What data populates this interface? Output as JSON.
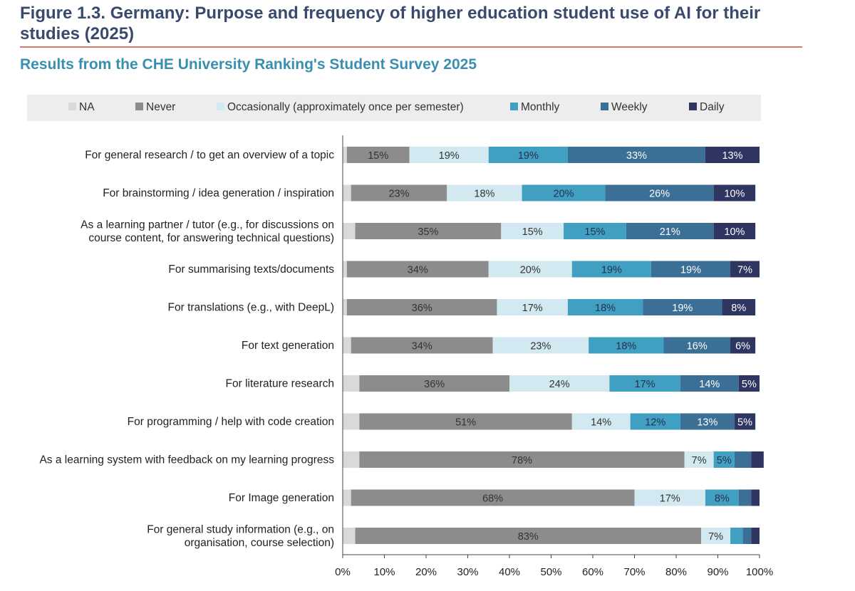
{
  "header": {
    "title": "Figure 1.3. Germany: Purpose and frequency of higher education student use of AI for their studies (2025)",
    "subtitle": "Results from the CHE University Ranking's Student Survey 2025"
  },
  "colors": {
    "NA": "#d9d9d9",
    "Never": "#8c8c8c",
    "Occasionally": "#d3e9f1",
    "Monthly": "#41a0c1",
    "Weekly": "#3b6f96",
    "Daily": "#2d3560",
    "title": "#394a6d",
    "subtitle": "#3a8fb0",
    "rule": "#d9796e"
  },
  "legend": [
    {
      "key": "NA",
      "label": "NA"
    },
    {
      "key": "Never",
      "label": "Never"
    },
    {
      "key": "Occasionally",
      "label": "Occasionally (approximately once per semester)"
    },
    {
      "key": "Monthly",
      "label": "Monthly"
    },
    {
      "key": "Weekly",
      "label": "Weekly"
    },
    {
      "key": "Daily",
      "label": "Daily"
    }
  ],
  "chart_data": {
    "type": "bar",
    "orientation": "horizontal",
    "stacked": true,
    "title": "Figure 1.3. Germany: Purpose and frequency of higher education student use of AI for their studies (2025)",
    "subtitle": "Results from the CHE University Ranking's Student Survey 2025",
    "xlabel": "",
    "ylabel": "",
    "xlim": [
      0,
      100
    ],
    "x_ticks": [
      "0%",
      "10%",
      "20%",
      "30%",
      "40%",
      "50%",
      "60%",
      "70%",
      "80%",
      "90%",
      "100%"
    ],
    "legend_position": "top",
    "grid": false,
    "categories": [
      [
        "For general research / to get an overview of a topic"
      ],
      [
        "For brainstorming / idea generation / inspiration"
      ],
      [
        "As a learning partner / tutor (e.g., for discussions on",
        "course content, for answering technical questions)"
      ],
      [
        "For summarising texts/documents"
      ],
      [
        "For translations (e.g., with DeepL)"
      ],
      [
        "For text generation"
      ],
      [
        "For literature research"
      ],
      [
        "For programming / help with code creation"
      ],
      [
        "As a learning system with feedback on my learning progress"
      ],
      [
        "For Image generation"
      ],
      [
        "For general study information (e.g., on",
        "organisation, course selection)"
      ]
    ],
    "series": [
      {
        "name": "NA",
        "values": [
          1,
          2,
          3,
          1,
          1,
          2,
          4,
          4,
          4,
          2,
          3
        ]
      },
      {
        "name": "Never",
        "values": [
          15,
          23,
          35,
          34,
          36,
          34,
          36,
          51,
          78,
          68,
          83
        ]
      },
      {
        "name": "Occasionally",
        "values": [
          19,
          18,
          15,
          20,
          17,
          23,
          24,
          14,
          7,
          17,
          7
        ]
      },
      {
        "name": "Monthly",
        "values": [
          19,
          20,
          15,
          19,
          18,
          18,
          17,
          12,
          5,
          8,
          3
        ]
      },
      {
        "name": "Weekly",
        "values": [
          33,
          26,
          21,
          19,
          19,
          16,
          14,
          13,
          4,
          3,
          2
        ]
      },
      {
        "name": "Daily",
        "values": [
          13,
          10,
          10,
          7,
          8,
          6,
          5,
          5,
          3,
          2,
          2
        ]
      }
    ],
    "data_labels": [
      [
        "",
        "15%",
        "19%",
        "19%",
        "33%",
        "13%"
      ],
      [
        "",
        "23%",
        "18%",
        "20%",
        "26%",
        "10%"
      ],
      [
        "",
        "35%",
        "15%",
        "15%",
        "21%",
        "10%"
      ],
      [
        "",
        "34%",
        "20%",
        "19%",
        "19%",
        "7%"
      ],
      [
        "",
        "36%",
        "17%",
        "18%",
        "19%",
        "8%"
      ],
      [
        "",
        "34%",
        "23%",
        "18%",
        "16%",
        "6%"
      ],
      [
        "",
        "36%",
        "24%",
        "17%",
        "14%",
        "5%"
      ],
      [
        "",
        "51%",
        "14%",
        "12%",
        "13%",
        "5%"
      ],
      [
        "",
        "78%",
        "7%",
        "5%",
        "",
        ""
      ],
      [
        "",
        "68%",
        "17%",
        "8%",
        "",
        ""
      ],
      [
        "",
        "83%",
        "7%",
        "",
        "",
        ""
      ]
    ]
  }
}
